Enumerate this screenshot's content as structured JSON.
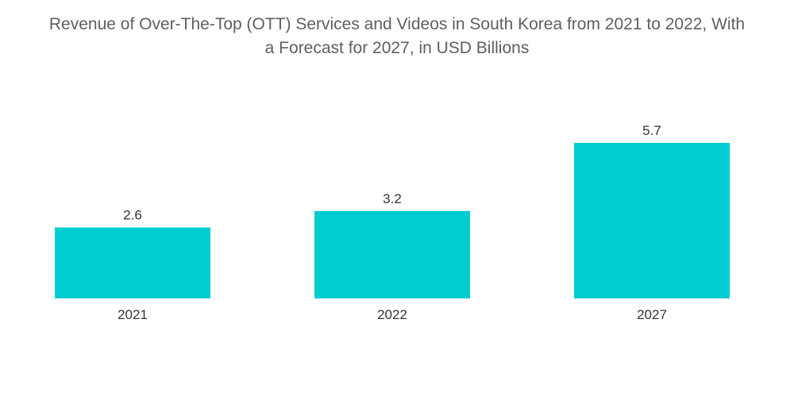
{
  "chart_data": {
    "type": "bar",
    "title_lines": [
      "Revenue of Over-The-Top (OTT) Services and Videos in South Korea from 2021 to 2022, With",
      "a Forecast for 2027, in USD Billions"
    ],
    "categories": [
      "2021",
      "2022",
      "2027"
    ],
    "values": [
      2.6,
      3.2,
      5.7
    ],
    "data_labels": [
      "2.6",
      "3.2",
      "5.7"
    ],
    "xlabel": "",
    "ylabel": "",
    "ylim": [
      0,
      5.7
    ],
    "grid": false,
    "legend": "none",
    "bar_color": "#00cdd0"
  }
}
